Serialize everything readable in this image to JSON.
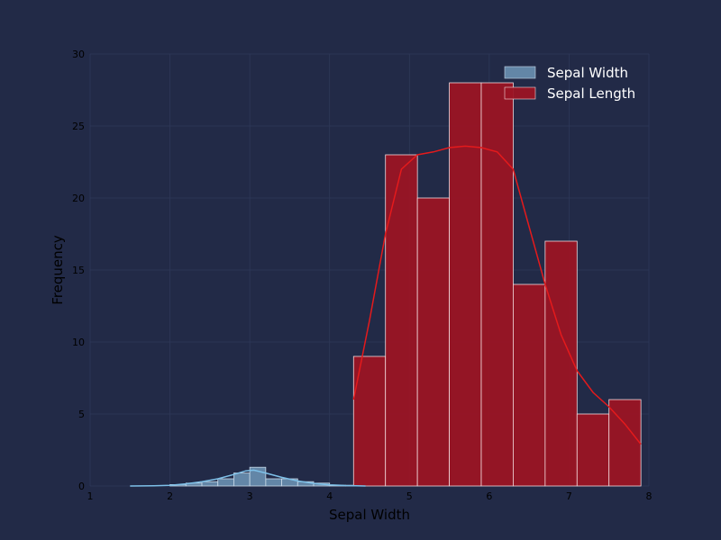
{
  "chart_data": {
    "type": "bar",
    "title": "",
    "xlabel": "Sepal Width",
    "ylabel": "Frequency",
    "xlim": [
      1,
      8
    ],
    "ylim": [
      0,
      30
    ],
    "xticks": [
      "1",
      "2",
      "3",
      "4",
      "5",
      "6",
      "7",
      "8"
    ],
    "yticks": [
      "0",
      "5",
      "10",
      "15",
      "20",
      "25",
      "30"
    ],
    "grid": true,
    "legend_placement": "top-right",
    "colors": {
      "background": "#222a47",
      "grid": "#2e3858",
      "sepal_width_fill": "#6f97b8",
      "sepal_width_edge": "#c9d9e8",
      "sepal_width_kde": "#7ec0e8",
      "sepal_length_fill": "#9b1424",
      "sepal_length_edge": "#f2d9dc",
      "sepal_length_kde": "#e41a1c"
    },
    "series": [
      {
        "name": "Sepal Width",
        "bins": [
          {
            "x0": 2.0,
            "x1": 2.2,
            "count": 0.1
          },
          {
            "x0": 2.2,
            "x1": 2.4,
            "count": 0.2
          },
          {
            "x0": 2.4,
            "x1": 2.6,
            "count": 0.3
          },
          {
            "x0": 2.6,
            "x1": 2.8,
            "count": 0.5
          },
          {
            "x0": 2.8,
            "x1": 3.0,
            "count": 0.9
          },
          {
            "x0": 3.0,
            "x1": 3.2,
            "count": 1.3
          },
          {
            "x0": 3.2,
            "x1": 3.4,
            "count": 0.5
          },
          {
            "x0": 3.4,
            "x1": 3.6,
            "count": 0.5
          },
          {
            "x0": 3.6,
            "x1": 3.8,
            "count": 0.3
          },
          {
            "x0": 3.8,
            "x1": 4.0,
            "count": 0.2
          },
          {
            "x0": 4.0,
            "x1": 4.2,
            "count": 0.05
          },
          {
            "x0": 4.2,
            "x1": 4.4,
            "count": 0.05
          }
        ],
        "kde": [
          [
            1.5,
            0.0
          ],
          [
            1.8,
            0.02
          ],
          [
            2.0,
            0.05
          ],
          [
            2.2,
            0.15
          ],
          [
            2.4,
            0.3
          ],
          [
            2.6,
            0.5
          ],
          [
            2.8,
            0.8
          ],
          [
            2.95,
            1.05
          ],
          [
            3.05,
            1.1
          ],
          [
            3.2,
            0.9
          ],
          [
            3.4,
            0.6
          ],
          [
            3.6,
            0.35
          ],
          [
            3.8,
            0.18
          ],
          [
            4.0,
            0.08
          ],
          [
            4.2,
            0.03
          ],
          [
            4.45,
            0.0
          ]
        ]
      },
      {
        "name": "Sepal Length",
        "bins": [
          {
            "x0": 4.3,
            "x1": 4.7,
            "count": 9
          },
          {
            "x0": 4.7,
            "x1": 5.1,
            "count": 23
          },
          {
            "x0": 5.1,
            "x1": 5.5,
            "count": 20
          },
          {
            "x0": 5.5,
            "x1": 5.9,
            "count": 28
          },
          {
            "x0": 5.9,
            "x1": 6.3,
            "count": 28
          },
          {
            "x0": 6.3,
            "x1": 6.7,
            "count": 14
          },
          {
            "x0": 6.7,
            "x1": 7.1,
            "count": 17
          },
          {
            "x0": 7.1,
            "x1": 7.5,
            "count": 5
          },
          {
            "x0": 7.5,
            "x1": 7.9,
            "count": 6
          }
        ],
        "kde": [
          [
            4.3,
            6.0
          ],
          [
            4.5,
            11.5
          ],
          [
            4.7,
            17.5
          ],
          [
            4.9,
            22.0
          ],
          [
            5.1,
            23.0
          ],
          [
            5.3,
            23.2
          ],
          [
            5.5,
            23.5
          ],
          [
            5.7,
            23.6
          ],
          [
            5.9,
            23.5
          ],
          [
            6.1,
            23.2
          ],
          [
            6.3,
            22.0
          ],
          [
            6.5,
            18.0
          ],
          [
            6.7,
            14.0
          ],
          [
            6.9,
            10.5
          ],
          [
            7.1,
            8.0
          ],
          [
            7.3,
            6.5
          ],
          [
            7.5,
            5.5
          ],
          [
            7.7,
            4.3
          ],
          [
            7.9,
            2.9
          ]
        ]
      }
    ]
  }
}
